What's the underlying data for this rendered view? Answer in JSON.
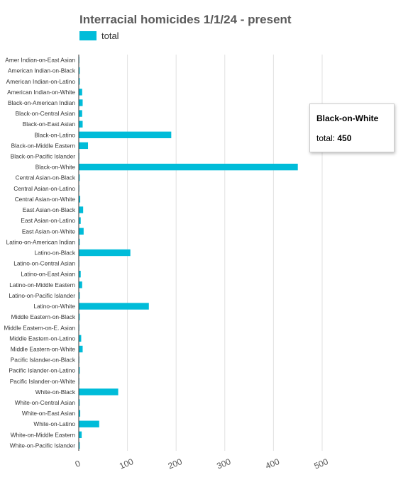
{
  "chart_data": {
    "type": "bar",
    "orientation": "horizontal",
    "title": "Interracial homicides 1/1/24 - present",
    "categories": [
      "Amer Indian-on-East Asian",
      "American Indian-on-Black",
      "American Indian-on-Latino",
      "American Indian-on-White",
      "Black-on-American Indian",
      "Black-on-Central Asian",
      "Black-on-East Asian",
      "Black-on-Latino",
      "Black-on-Middle Eastern",
      "Black-on-Pacific Islander",
      "Black-on-White",
      "Central Asian-on-Black",
      "Central Asian-on-Latino",
      "Central Asian-on-White",
      "East Asian-on-Black",
      "East Asian-on-Latino",
      "East Asian-on-White",
      "Latino-on-American Indian",
      "Latino-on-Black",
      "Latino-on-Central Asian",
      "Latino-on-East Asian",
      "Latino-on-Middle Eastern",
      "Latino-on-Pacific Islander",
      "Latino-on-White",
      "Middle Eastern-on-Black",
      "Middle Eastern-on-E. Asian",
      "Middle Eastern-on-Latino",
      "Middle Eastern-on-White",
      "Pacific Islander-on-Black",
      "Pacific Islander-on-Latino",
      "Pacific Islander-on-White",
      "White-on-Black",
      "White-on-Central Asian",
      "White-on-East Asian",
      "White-on-Latino",
      "White-on-Middle Eastern",
      "White-on-Pacific Islander"
    ],
    "series": [
      {
        "name": "total",
        "color": "#00bcd9",
        "values": [
          1,
          2,
          2,
          7,
          8,
          7,
          8,
          190,
          19,
          1,
          450,
          2,
          1,
          3,
          9,
          4,
          10,
          2,
          106,
          1,
          4,
          7,
          2,
          144,
          2,
          1,
          5,
          8,
          1,
          2,
          1,
          81,
          2,
          3,
          42,
          6,
          2
        ]
      }
    ],
    "xlim": [
      0,
      500
    ],
    "xticks": [
      "0",
      "100",
      "200",
      "300",
      "400",
      "500"
    ],
    "grid": true,
    "legend": "top-left"
  },
  "tooltip": {
    "category": "Black-on-White",
    "series_label": "total:",
    "value": "450"
  }
}
